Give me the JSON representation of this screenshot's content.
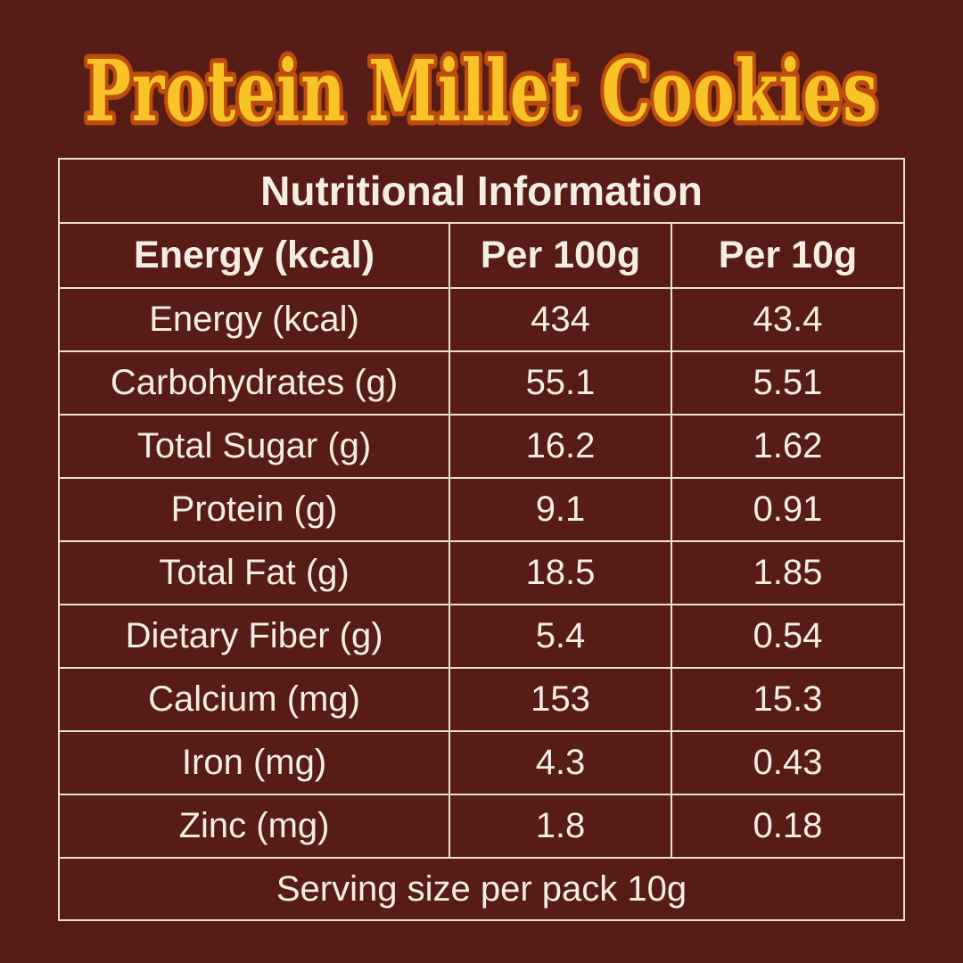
{
  "title": {
    "text": "Protein Millet Cookies"
  },
  "table": {
    "header": "Nutritional Information",
    "columns": [
      "Energy (kcal)",
      "Per 100g",
      "Per 10g"
    ],
    "rows": [
      [
        "Energy (kcal)",
        "434",
        "43.4"
      ],
      [
        "Carbohydrates (g)",
        "55.1",
        "5.51"
      ],
      [
        "Total Sugar (g)",
        "16.2",
        "1.62"
      ],
      [
        "Protein (g)",
        "9.1",
        "0.91"
      ],
      [
        "Total Fat (g)",
        "18.5",
        "1.85"
      ],
      [
        "Dietary Fiber (g)",
        "5.4",
        "0.54"
      ],
      [
        "Calcium (mg)",
        "153",
        "15.3"
      ],
      [
        "Iron (mg)",
        "4.3",
        "0.43"
      ],
      [
        "Zinc (mg)",
        "1.8",
        "0.18"
      ]
    ],
    "footer": "Serving size per pack 10g"
  },
  "colors": {
    "bg": "#581c16",
    "line": "#e9e0d2",
    "text": "#f4eee2",
    "title-fill": "#f8c327",
    "title-stroke": "#bc4d0e"
  }
}
